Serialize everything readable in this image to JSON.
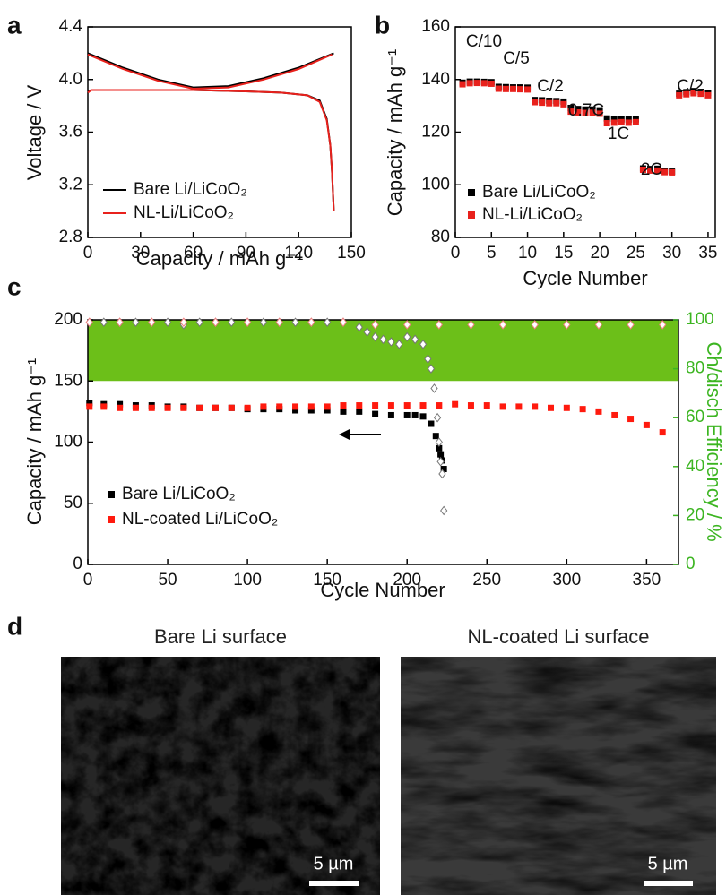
{
  "chart_data": [
    {
      "panel": "a",
      "type": "line",
      "x_label": "Capacity / mAh g⁻¹",
      "y_label": "Voltage / V",
      "xlim": [
        0,
        150
      ],
      "xticks": [
        0,
        30,
        60,
        90,
        120,
        150
      ],
      "ylim": [
        2.8,
        4.4
      ],
      "yticks": [
        2.8,
        3.2,
        3.6,
        {
          "value": 4.0,
          "label": "4.0"
        },
        4.4
      ],
      "series": [
        {
          "name": "Bare Li/LiCoO₂",
          "color": "#000000",
          "marker": "line",
          "x": [
            0,
            20,
            40,
            60,
            80,
            100,
            120,
            140,
            null,
            0,
            2,
            10,
            30,
            60,
            90,
            110,
            125,
            132,
            136,
            138,
            139,
            140
          ],
          "values": [
            4.2,
            4.09,
            4.0,
            3.94,
            3.95,
            4.01,
            4.09,
            4.2,
            null,
            3.91,
            3.92,
            3.92,
            3.92,
            3.92,
            3.91,
            3.9,
            3.88,
            3.84,
            3.7,
            3.5,
            3.3,
            3.0
          ]
        },
        {
          "name": "NL-Li/LiCoO₂",
          "color": "#e8211c",
          "marker": "line",
          "x": [
            0,
            20,
            40,
            60,
            80,
            100,
            120,
            139,
            null,
            0,
            2,
            10,
            30,
            60,
            90,
            110,
            125,
            132,
            136,
            138,
            139,
            140
          ],
          "values": [
            4.19,
            4.08,
            3.99,
            3.93,
            3.94,
            4.0,
            4.08,
            4.19,
            null,
            3.9,
            3.92,
            3.92,
            3.92,
            3.92,
            3.91,
            3.9,
            3.88,
            3.83,
            3.69,
            3.5,
            3.3,
            3.0
          ]
        }
      ]
    },
    {
      "panel": "b",
      "type": "scatter",
      "x_label": "Cycle Number",
      "y_label": "Capacity / mAh g⁻¹",
      "xlim": [
        0,
        36
      ],
      "xticks": [
        0,
        5,
        10,
        15,
        20,
        25,
        30,
        35
      ],
      "ylim": [
        80,
        160
      ],
      "yticks": [
        80,
        100,
        120,
        140,
        160
      ],
      "annotations": [
        "C/10",
        "C/5",
        "C/2",
        "0.7C",
        "1C",
        "2C",
        "C/2"
      ],
      "series": [
        {
          "name": "Bare Li/LiCoO₂",
          "color": "#000000",
          "marker": "square",
          "x": [
            1,
            2,
            3,
            4,
            5,
            6,
            7,
            8,
            9,
            10,
            11,
            12,
            13,
            14,
            15,
            16,
            17,
            18,
            19,
            20,
            21,
            22,
            23,
            24,
            25,
            26,
            27,
            28,
            29,
            30,
            31,
            32,
            33,
            34,
            35
          ],
          "values": [
            138.8,
            139.2,
            139.2,
            139.1,
            139.0,
            137.2,
            137.1,
            137.0,
            137.0,
            136.9,
            132.2,
            132.1,
            131.9,
            131.8,
            131.6,
            129.2,
            128.8,
            128.6,
            128.6,
            128.3,
            125.2,
            125.1,
            124.9,
            124.8,
            124.9,
            106.2,
            106.0,
            106.1,
            105.3,
            105.0,
            134.6,
            135.2,
            135.6,
            135.3,
            134.9
          ]
        },
        {
          "name": "NL-Li/LiCoO₂",
          "color": "#e8211c",
          "marker": "square",
          "x": [
            1,
            2,
            3,
            4,
            5,
            6,
            7,
            8,
            9,
            10,
            11,
            12,
            13,
            14,
            15,
            16,
            17,
            18,
            19,
            20,
            21,
            22,
            23,
            24,
            25,
            26,
            27,
            28,
            29,
            30,
            31,
            32,
            33,
            34,
            35
          ],
          "values": [
            138.2,
            138.6,
            138.7,
            138.6,
            138.4,
            136.5,
            136.4,
            136.4,
            136.3,
            136.2,
            131.4,
            131.2,
            131.0,
            131.0,
            130.6,
            127.8,
            127.5,
            127.3,
            127.4,
            127.0,
            123.4,
            123.6,
            123.8,
            123.6,
            123.8,
            105.7,
            105.4,
            105.4,
            104.8,
            104.7,
            134.0,
            134.4,
            134.8,
            134.6,
            134.0
          ]
        }
      ]
    },
    {
      "panel": "c",
      "type": "scatter",
      "x_label": "Cycle Number",
      "y_label": "Capacity / mAh g⁻¹",
      "y2_label": "Ch/disch Efficiency / %",
      "xlim": [
        0,
        370
      ],
      "xticks": [
        0,
        50,
        100,
        150,
        200,
        250,
        300,
        350
      ],
      "ylim": [
        0,
        200
      ],
      "yticks": [
        0,
        50,
        100,
        150,
        200
      ],
      "y2lim": [
        0,
        100
      ],
      "y2ticks": [
        0,
        20,
        40,
        60,
        80,
        100
      ],
      "y2_band": [
        75,
        100
      ],
      "y2_band_color": "#6cbf19",
      "series": [
        {
          "name": "Bare Li/LiCoO₂",
          "color": "#000000",
          "marker": "square",
          "x": [
            1,
            10,
            20,
            30,
            40,
            50,
            60,
            70,
            80,
            90,
            100,
            110,
            120,
            130,
            140,
            150,
            160,
            170,
            180,
            190,
            200,
            205,
            210,
            215,
            218,
            220,
            221,
            222,
            223
          ],
          "values": [
            132,
            131,
            131,
            130,
            130,
            129,
            129,
            128,
            128,
            128,
            127,
            127,
            127,
            126,
            126,
            126,
            125,
            125,
            123,
            122,
            122,
            122,
            121,
            115,
            105,
            95,
            90,
            85,
            78
          ]
        },
        {
          "name": "NL-coated Li/LiCoO₂",
          "color": "#ff1a0e",
          "marker": "square",
          "x": [
            1,
            10,
            20,
            30,
            40,
            50,
            60,
            70,
            80,
            90,
            100,
            110,
            120,
            130,
            140,
            150,
            160,
            170,
            180,
            190,
            200,
            210,
            220,
            230,
            240,
            250,
            260,
            270,
            280,
            290,
            300,
            310,
            320,
            330,
            340,
            350,
            360
          ],
          "values": [
            129,
            129,
            128,
            128,
            128,
            128,
            128,
            128,
            128,
            128,
            128,
            129,
            129,
            129,
            129,
            129,
            130,
            130,
            130,
            130,
            130,
            130,
            130,
            131,
            130,
            130,
            129,
            129,
            129,
            128,
            128,
            127,
            125,
            122,
            119,
            114,
            108
          ]
        },
        {
          "color": "#777777",
          "marker": "diamond",
          "axis": "y2",
          "x": [
            1,
            10,
            20,
            30,
            40,
            50,
            60,
            70,
            80,
            90,
            100,
            110,
            120,
            130,
            140,
            150,
            160,
            170,
            175,
            180,
            185,
            190,
            195,
            200,
            205,
            210,
            213,
            215,
            217,
            219,
            220,
            221,
            222,
            223
          ],
          "values": [
            99,
            99,
            99,
            99,
            99,
            99,
            98,
            99,
            99,
            99,
            99,
            99,
            99,
            99,
            99,
            99,
            99,
            97,
            95,
            93,
            92,
            91,
            90,
            93,
            92,
            90,
            84,
            80,
            72,
            60,
            50,
            42,
            37,
            22
          ]
        },
        {
          "color": "#f08080",
          "marker": "diamond",
          "axis": "y2",
          "x": [
            1,
            20,
            40,
            60,
            80,
            100,
            120,
            140,
            160,
            180,
            200,
            220,
            240,
            260,
            280,
            300,
            320,
            340,
            360
          ],
          "values": [
            99,
            99,
            99,
            99,
            99,
            99,
            99,
            99,
            99,
            98,
            98,
            98,
            98,
            98,
            98,
            98,
            98,
            98,
            98
          ]
        }
      ]
    }
  ],
  "images": {
    "panel": "d",
    "items": [
      {
        "title": "Bare Li surface",
        "scale_bar": "5 µm"
      },
      {
        "title": "NL-coated Li surface",
        "scale_bar": "5 µm"
      }
    ]
  }
}
